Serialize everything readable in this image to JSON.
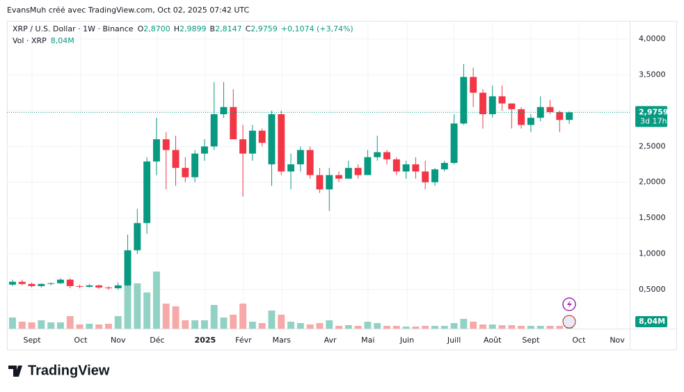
{
  "attribution": "EvansMuh créé avec TradingView.com, Oct 02, 2025 07:42 UTC",
  "logo": "TradingView",
  "chart_data": {
    "type": "candlestick",
    "legend": {
      "title": "XRP / U.S. Dollar · 1W · Binance",
      "fields": [
        {
          "key": "O",
          "text": "2,8700"
        },
        {
          "key": "H",
          "text": "2,9899"
        },
        {
          "key": "B",
          "text": "2,8147"
        },
        {
          "key": "C",
          "text": "2,9759"
        }
      ],
      "change": "+0,1074 (+3,74%)"
    },
    "volume_legend": {
      "title": "Vol · XRP",
      "text": "8,04M"
    },
    "last_price": {
      "value": 2.9759,
      "label": "2,9759",
      "countdown": "3d 17h"
    },
    "volume_badge": "8,04M",
    "up_color": "#089981",
    "down_color": "#f23645",
    "volume_up_color": "#92d2c5",
    "volume_down_color": "#f7a9a7",
    "categories": [
      null,
      null,
      null,
      null,
      null,
      null,
      null,
      null,
      null,
      null,
      null,
      null,
      null,
      null,
      null,
      null,
      null,
      null,
      null,
      null,
      null,
      null,
      null,
      null,
      null,
      null,
      null,
      null,
      null,
      null,
      null,
      null,
      null,
      null,
      null,
      null,
      null,
      null,
      null,
      null,
      null,
      null,
      null,
      null,
      null,
      null,
      null,
      null,
      null,
      null,
      null,
      null,
      null,
      null,
      null,
      null,
      null,
      null,
      null
    ],
    "open": [
      0.57,
      0.61,
      0.58,
      0.55,
      0.58,
      0.59,
      0.64,
      0.55,
      0.54,
      0.56,
      0.53,
      0.52,
      0.56,
      1.05,
      1.43,
      2.29,
      2.6,
      2.45,
      2.2,
      2.07,
      2.4,
      2.5,
      2.95,
      3.05,
      2.6,
      2.4,
      2.72,
      2.25,
      2.95,
      2.15,
      2.25,
      2.45,
      2.1,
      1.9,
      2.1,
      2.05,
      2.2,
      2.1,
      2.35,
      2.42,
      2.32,
      2.15,
      2.25,
      2.15,
      2.0,
      2.18,
      2.27,
      2.82,
      3.47,
      3.25,
      2.95,
      3.2,
      3.1,
      3.02,
      2.8,
      2.9,
      3.05,
      2.98,
      2.87
    ],
    "high": [
      0.64,
      0.64,
      0.6,
      0.59,
      0.6,
      0.66,
      0.66,
      0.57,
      0.58,
      0.57,
      0.55,
      0.6,
      1.27,
      1.63,
      2.35,
      2.9,
      2.7,
      2.65,
      2.35,
      2.45,
      2.6,
      3.4,
      3.4,
      3.3,
      2.8,
      2.8,
      2.75,
      3.0,
      3.0,
      2.4,
      2.5,
      2.5,
      2.2,
      2.2,
      2.15,
      2.3,
      2.25,
      2.45,
      2.65,
      2.45,
      2.35,
      2.3,
      2.35,
      2.3,
      2.2,
      2.3,
      2.95,
      3.65,
      3.6,
      3.3,
      3.35,
      3.35,
      3.1,
      3.05,
      2.95,
      3.2,
      3.15,
      3.0,
      2.9899
    ],
    "low": [
      0.55,
      0.56,
      0.53,
      0.53,
      0.56,
      0.58,
      0.52,
      0.52,
      0.53,
      0.51,
      0.5,
      0.5,
      0.55,
      1.0,
      1.28,
      2.1,
      1.9,
      1.95,
      2.0,
      2.0,
      2.3,
      2.45,
      2.9,
      2.6,
      1.8,
      2.3,
      2.5,
      1.95,
      2.1,
      1.9,
      2.15,
      2.05,
      1.85,
      1.6,
      2.0,
      2.05,
      2.05,
      2.1,
      2.3,
      2.25,
      2.1,
      2.05,
      2.05,
      1.9,
      1.95,
      2.15,
      2.25,
      2.8,
      3.05,
      2.75,
      2.9,
      3.0,
      2.75,
      2.75,
      2.7,
      2.85,
      2.95,
      2.7,
      2.8147
    ],
    "close": [
      0.61,
      0.58,
      0.55,
      0.58,
      0.59,
      0.64,
      0.55,
      0.54,
      0.56,
      0.53,
      0.52,
      0.56,
      1.05,
      1.43,
      2.29,
      2.6,
      2.45,
      2.2,
      2.07,
      2.4,
      2.5,
      2.95,
      3.05,
      2.6,
      2.4,
      2.72,
      2.55,
      2.95,
      2.15,
      2.25,
      2.45,
      2.1,
      1.9,
      2.1,
      2.05,
      2.2,
      2.1,
      2.35,
      2.42,
      2.32,
      2.15,
      2.25,
      2.15,
      2.0,
      2.18,
      2.27,
      2.82,
      3.47,
      3.25,
      2.95,
      3.2,
      3.1,
      3.02,
      2.8,
      2.9,
      3.05,
      2.98,
      2.87,
      2.9759
    ],
    "volume": [
      40,
      25,
      22.5,
      30,
      22.5,
      22.5,
      45,
      15,
      17.5,
      15,
      17.5,
      45,
      200,
      162.5,
      130,
      205,
      90,
      80,
      30,
      30,
      30,
      85,
      40,
      50,
      90,
      25,
      20,
      65,
      50,
      25,
      20,
      15,
      20,
      30,
      10,
      12.5,
      10,
      25,
      20,
      10,
      10,
      7.5,
      7.5,
      10,
      10,
      10,
      20,
      35,
      25,
      15,
      15,
      12.5,
      12.5,
      10,
      10,
      10,
      10,
      10,
      8.04
    ],
    "volume_lim": [
      0,
      250
    ],
    "xlim": [
      -0.58,
      64.3
    ],
    "xticks": [
      {
        "value": 2.03,
        "label": "Sept"
      },
      {
        "value": 7.1,
        "label": "Oct"
      },
      {
        "value": 11.0,
        "label": "Nov"
      },
      {
        "value": 15.07,
        "label": "Déc"
      },
      {
        "value": 20.07,
        "label": "2025"
      },
      {
        "value": 24.06,
        "label": "Févr"
      },
      {
        "value": 28.04,
        "label": "Mars"
      },
      {
        "value": 33.1,
        "label": "Avr"
      },
      {
        "value": 37.03,
        "label": "Mai"
      },
      {
        "value": 41.1,
        "label": "Juin"
      },
      {
        "value": 46.0,
        "label": "Juill"
      },
      {
        "value": 50.0,
        "label": "Août"
      },
      {
        "value": 54.0,
        "label": "Sept"
      },
      {
        "value": 59.0,
        "label": "Oct"
      },
      {
        "value": 63.0,
        "label": "Nov"
      }
    ],
    "ylim": [
      -0.044,
      4.253
    ],
    "yticks": [
      {
        "value": 0.5,
        "label": "0,5000"
      },
      {
        "value": 1.0,
        "label": "1,0000"
      },
      {
        "value": 1.5,
        "label": "1,5000"
      },
      {
        "value": 2.0,
        "label": "2,0000"
      },
      {
        "value": 2.5,
        "label": "2,5000"
      },
      {
        "value": 3.0,
        "label": "3,0000"
      },
      {
        "value": 3.5,
        "label": "3,5000"
      },
      {
        "value": 4.0,
        "label": "4,0000"
      }
    ],
    "grid": true
  }
}
